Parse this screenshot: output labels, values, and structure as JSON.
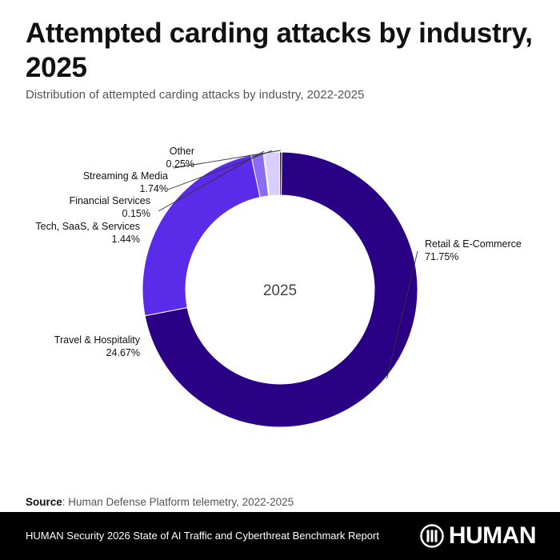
{
  "header": {
    "title": "Attempted carding attacks by industry, 2025",
    "subtitle": "Distribution of attempted carding attacks by industry, 2022-2025"
  },
  "chart_data": {
    "type": "pie",
    "variant": "donut",
    "title": "Attempted carding attacks by industry, 2025",
    "subtitle": "Distribution of attempted carding attacks by industry, 2022-2025",
    "center_label": "2025",
    "unit": "%",
    "series": [
      {
        "name": "Retail & E-Commerce",
        "value": 71.75,
        "label": "71.75%",
        "color": "#2a0085"
      },
      {
        "name": "Travel & Hospitality",
        "value": 24.67,
        "label": "24.67%",
        "color": "#5b2bea"
      },
      {
        "name": "Tech, SaaS, & Services",
        "value": 1.44,
        "label": "1.44%",
        "color": "#8a6bf6"
      },
      {
        "name": "Financial Services",
        "value": 0.15,
        "label": "0.15%",
        "color": "#b9a8fa"
      },
      {
        "name": "Streaming & Media",
        "value": 1.74,
        "label": "1.74%",
        "color": "#d8cdfc"
      },
      {
        "name": "Other",
        "value": 0.25,
        "label": "0.25%",
        "color": "#2a2a2a"
      }
    ]
  },
  "source": {
    "label": "Source",
    "text": ": Human Defense Platform telemetry, 2022-2025"
  },
  "footer": {
    "report": "HUMAN Security 2026 State of AI Traffic and Cyberthreat Benchmark Report",
    "logo_text": "HUMAN"
  }
}
